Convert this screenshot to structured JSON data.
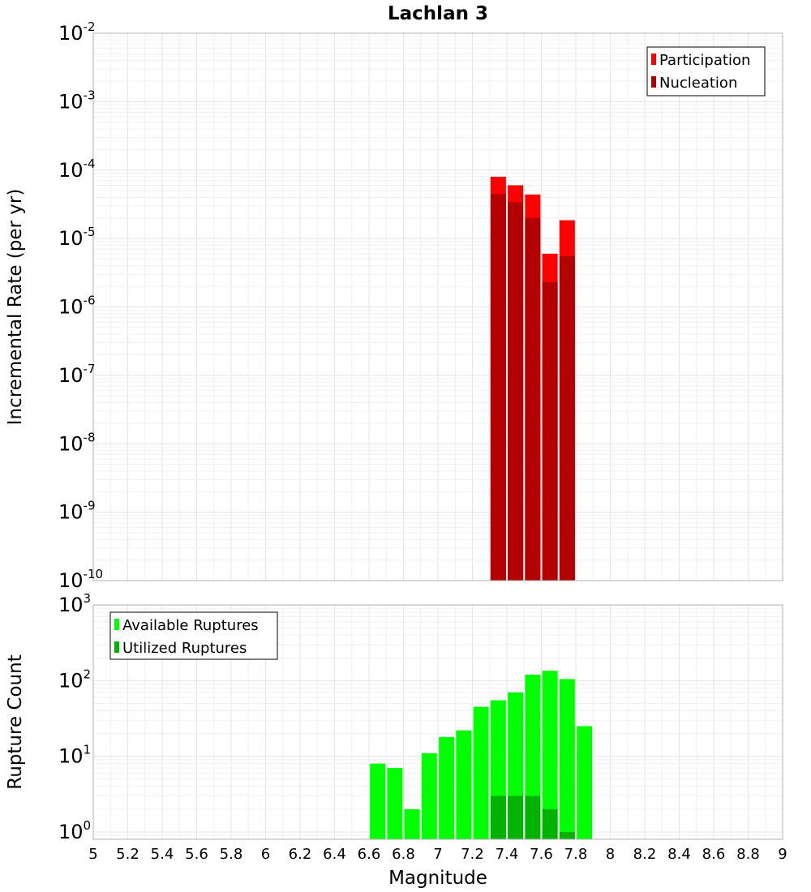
{
  "chart_data": [
    {
      "type": "bar",
      "title": "Lachlan 3",
      "xlabel": "",
      "ylabel": "Incremental Rate (per yr)",
      "xlim": [
        5,
        9
      ],
      "ylim": [
        1e-10,
        0.01
      ],
      "yscale": "log",
      "ytick_labels": [
        {
          "base": "10",
          "exp": "-10"
        },
        {
          "base": "10",
          "exp": "-9"
        },
        {
          "base": "10",
          "exp": "-8"
        },
        {
          "base": "10",
          "exp": "-7"
        },
        {
          "base": "10",
          "exp": "-6"
        },
        {
          "base": "10",
          "exp": "-5"
        },
        {
          "base": "10",
          "exp": "-4"
        },
        {
          "base": "10",
          "exp": "-3"
        },
        {
          "base": "10",
          "exp": "-2"
        }
      ],
      "grid": true,
      "legend_position": "top-right",
      "x": [
        7.35,
        7.45,
        7.55,
        7.65,
        7.75
      ],
      "series": [
        {
          "name": "Participation",
          "color": "#ff0000",
          "values": [
            8e-05,
            6e-05,
            4.4e-05,
            6e-06,
            1.85e-05
          ]
        },
        {
          "name": "Nucleation",
          "color": "#b30000",
          "values": [
            4.5e-05,
            3.4e-05,
            2e-05,
            2.3e-06,
            5.5e-06
          ]
        }
      ]
    },
    {
      "type": "bar",
      "title": "",
      "xlabel": "Magnitude",
      "ylabel": "Rupture Count",
      "xlim": [
        5,
        9
      ],
      "ylim": [
        0.8,
        1000
      ],
      "yscale": "log",
      "ytick_labels": [
        {
          "base": "10",
          "exp": "0"
        },
        {
          "base": "10",
          "exp": "1"
        },
        {
          "base": "10",
          "exp": "2"
        },
        {
          "base": "10",
          "exp": "3"
        }
      ],
      "xtick_labels": [
        "5",
        "5.2",
        "5.4",
        "5.6",
        "5.8",
        "6",
        "6.2",
        "6.4",
        "6.6",
        "6.8",
        "7",
        "7.2",
        "7.4",
        "7.6",
        "7.8",
        "8",
        "8.2",
        "8.4",
        "8.6",
        "8.8",
        "9"
      ],
      "grid": true,
      "legend_position": "top-left",
      "x": [
        6.65,
        6.75,
        6.85,
        6.95,
        7.05,
        7.15,
        7.25,
        7.35,
        7.45,
        7.55,
        7.65,
        7.75,
        7.85
      ],
      "series": [
        {
          "name": "Available Ruptures",
          "color": "#00ff00",
          "values": [
            8,
            7,
            2,
            11,
            18,
            22,
            45,
            55,
            70,
            120,
            135,
            105,
            25
          ]
        },
        {
          "name": "Utilized Ruptures",
          "color": "#00b300",
          "values": [
            0,
            0,
            0,
            0,
            0,
            0,
            0,
            3,
            3,
            3,
            2,
            1,
            0
          ]
        }
      ]
    }
  ]
}
